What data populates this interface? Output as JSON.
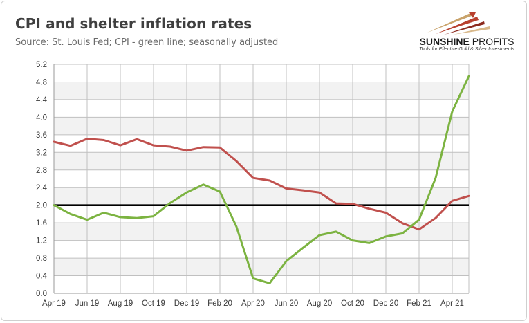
{
  "header": {
    "title": "CPI and shelter inflation rates",
    "subtitle": "Source: St. Louis Fed; CPI - green line; seasonally adjusted"
  },
  "logo": {
    "name_bold": "SUNSHINE",
    "name_regular": "PROFITS",
    "tagline": "Tools for Effective Gold & Silver Investments"
  },
  "colors": {
    "cpi": "#7cb341",
    "shelter": "#c0504d",
    "reference": "#000000",
    "band_light": "#ffffff",
    "band_dark": "#f2f2f2",
    "grid": "#c0c0c0"
  },
  "chart_data": {
    "type": "line",
    "title": "CPI and shelter inflation rates",
    "xlabel": "",
    "ylabel": "",
    "ylim": [
      0,
      5.2
    ],
    "ytick_step": 0.4,
    "grid": true,
    "x": [
      "Apr 19",
      "May 19",
      "Jun 19",
      "Jul 19",
      "Aug 19",
      "Sep 19",
      "Oct 19",
      "Nov 19",
      "Dec 19",
      "Jan 20",
      "Feb 20",
      "Mar 20",
      "Apr 20",
      "May 20",
      "Jun 20",
      "Jul 20",
      "Aug 20",
      "Sep 20",
      "Oct 20",
      "Nov 20",
      "Dec 20",
      "Jan 21",
      "Feb 21",
      "Mar 21",
      "Apr 21",
      "May 21"
    ],
    "xtick_labels": [
      "Apr 19",
      "Jun 19",
      "Aug 19",
      "Oct 19",
      "Dec 19",
      "Feb 20",
      "Apr 20",
      "Jun 20",
      "Aug 20",
      "Oct 20",
      "Dec 20",
      "Feb 21",
      "Apr 21"
    ],
    "ytick_labels": [
      "0.0",
      "0.4",
      "0.8",
      "1.2",
      "1.6",
      "2.0",
      "2.4",
      "2.8",
      "3.2",
      "3.6",
      "4.0",
      "4.4",
      "4.8",
      "5.2"
    ],
    "reference_line": 2.0,
    "series": [
      {
        "name": "CPI",
        "color": "#7cb341",
        "values": [
          2.0,
          1.8,
          1.67,
          1.83,
          1.73,
          1.71,
          1.75,
          2.05,
          2.29,
          2.47,
          2.31,
          1.51,
          0.34,
          0.23,
          0.73,
          1.03,
          1.32,
          1.4,
          1.2,
          1.14,
          1.29,
          1.36,
          1.67,
          2.62,
          4.13,
          4.93
        ]
      },
      {
        "name": "Shelter",
        "color": "#c0504d",
        "values": [
          3.44,
          3.35,
          3.51,
          3.48,
          3.36,
          3.5,
          3.36,
          3.33,
          3.24,
          3.32,
          3.31,
          3.0,
          2.62,
          2.56,
          2.38,
          2.34,
          2.29,
          2.04,
          2.03,
          1.92,
          1.83,
          1.59,
          1.45,
          1.71,
          2.1,
          2.21
        ]
      }
    ]
  }
}
